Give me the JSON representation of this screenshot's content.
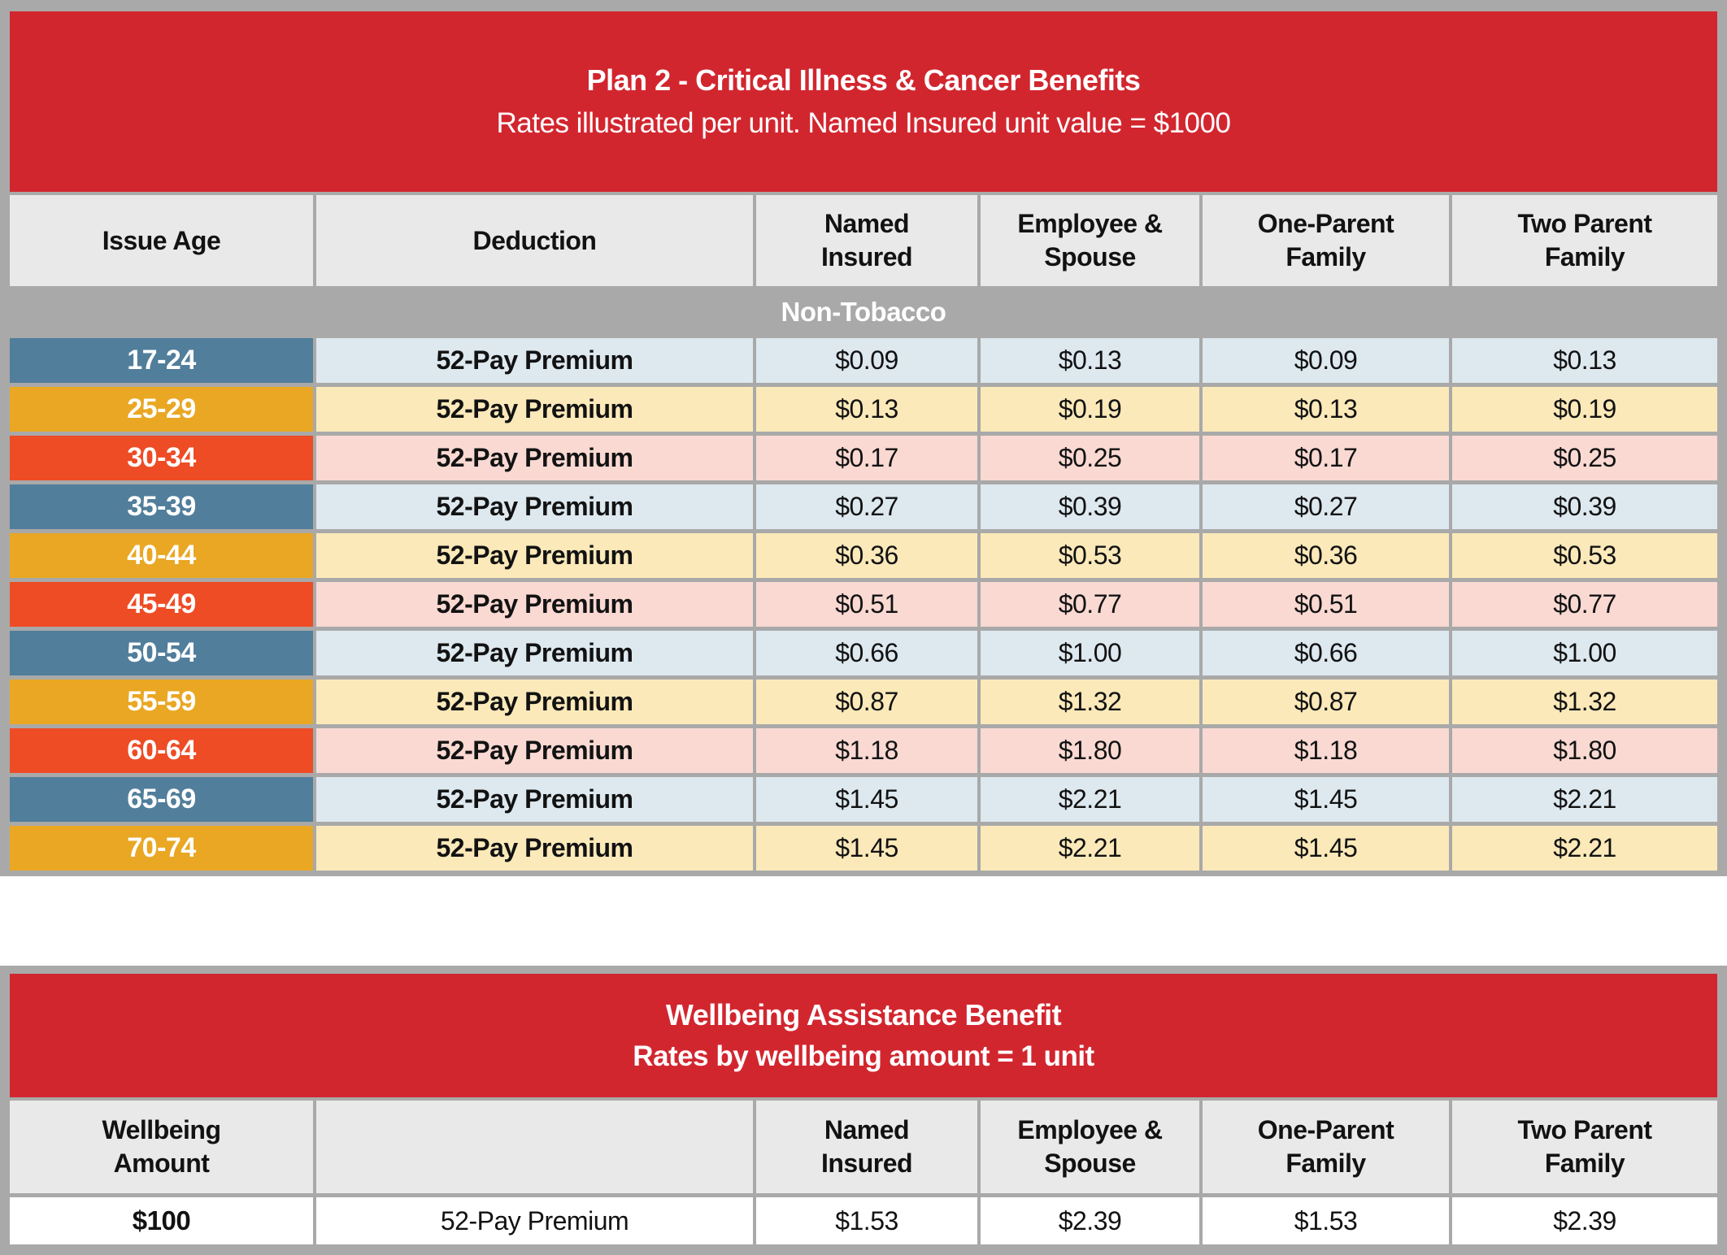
{
  "colors": {
    "header_red": "#d2262f",
    "band_gray": "#a9a9a9",
    "header_cell_gray": "#e9e9e9",
    "age_blue": "#517e9b",
    "age_amber": "#e9a723",
    "age_orange_red": "#ee4c25",
    "row_blue_tint": "#dde8ef",
    "row_amber_tint": "#fbe9b9",
    "row_red_tint": "#f9d9d2"
  },
  "plan_table": {
    "title": "Plan 2 - Critical Illness & Cancer Benefits",
    "subtitle": "Rates illustrated per unit. Named Insured unit value = $1000",
    "columns": [
      {
        "lines": [
          "Issue Age"
        ]
      },
      {
        "lines": [
          "Deduction"
        ]
      },
      {
        "lines": [
          "Named",
          "Insured"
        ]
      },
      {
        "lines": [
          "Employee &",
          "Spouse"
        ]
      },
      {
        "lines": [
          "One-Parent",
          "Family"
        ]
      },
      {
        "lines": [
          "Two Parent",
          "Family"
        ]
      }
    ],
    "section_label": "Non-Tobacco",
    "rows": [
      {
        "age": "17-24",
        "deduction": "52-Pay Premium",
        "values": [
          "$0.09",
          "$0.13",
          "$0.09",
          "$0.13"
        ]
      },
      {
        "age": "25-29",
        "deduction": "52-Pay Premium",
        "values": [
          "$0.13",
          "$0.19",
          "$0.13",
          "$0.19"
        ]
      },
      {
        "age": "30-34",
        "deduction": "52-Pay Premium",
        "values": [
          "$0.17",
          "$0.25",
          "$0.17",
          "$0.25"
        ]
      },
      {
        "age": "35-39",
        "deduction": "52-Pay Premium",
        "values": [
          "$0.27",
          "$0.39",
          "$0.27",
          "$0.39"
        ]
      },
      {
        "age": "40-44",
        "deduction": "52-Pay Premium",
        "values": [
          "$0.36",
          "$0.53",
          "$0.36",
          "$0.53"
        ]
      },
      {
        "age": "45-49",
        "deduction": "52-Pay Premium",
        "values": [
          "$0.51",
          "$0.77",
          "$0.51",
          "$0.77"
        ]
      },
      {
        "age": "50-54",
        "deduction": "52-Pay Premium",
        "values": [
          "$0.66",
          "$1.00",
          "$0.66",
          "$1.00"
        ]
      },
      {
        "age": "55-59",
        "deduction": "52-Pay Premium",
        "values": [
          "$0.87",
          "$1.32",
          "$0.87",
          "$1.32"
        ]
      },
      {
        "age": "60-64",
        "deduction": "52-Pay Premium",
        "values": [
          "$1.18",
          "$1.80",
          "$1.18",
          "$1.80"
        ]
      },
      {
        "age": "65-69",
        "deduction": "52-Pay Premium",
        "values": [
          "$1.45",
          "$2.21",
          "$1.45",
          "$2.21"
        ]
      },
      {
        "age": "70-74",
        "deduction": "52-Pay Premium",
        "values": [
          "$1.45",
          "$2.21",
          "$1.45",
          "$2.21"
        ]
      }
    ]
  },
  "wellbeing_table": {
    "title": "Wellbeing Assistance Benefit",
    "subtitle": "Rates by wellbeing amount = 1 unit",
    "columns": [
      {
        "lines": [
          "Wellbeing",
          "Amount"
        ]
      },
      {
        "lines": [
          ""
        ]
      },
      {
        "lines": [
          "Named",
          "Insured"
        ]
      },
      {
        "lines": [
          "Employee &",
          "Spouse"
        ]
      },
      {
        "lines": [
          "One-Parent",
          "Family"
        ]
      },
      {
        "lines": [
          "Two Parent",
          "Family"
        ]
      }
    ],
    "row": {
      "amount": "$100",
      "deduction": "52-Pay Premium",
      "values": [
        "$1.53",
        "$2.39",
        "$1.53",
        "$2.39"
      ]
    }
  }
}
